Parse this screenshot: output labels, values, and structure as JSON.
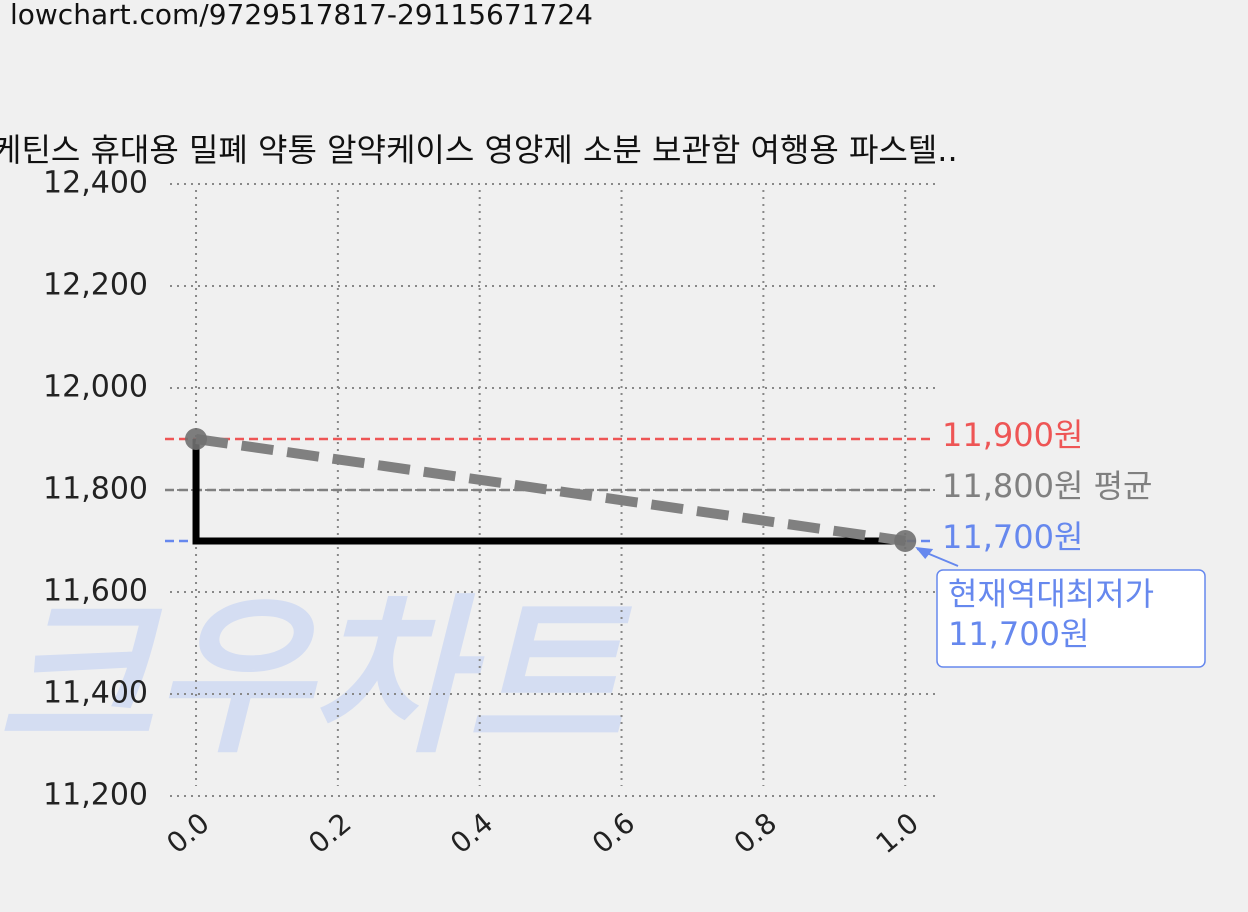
{
  "url": "lowchart.com/9729517817-29115671724",
  "chart_data": {
    "type": "line",
    "title": "케틴스 휴대용 밀폐 약통 알약케이스 영양제 소분 보관함 여행용 파스텔..",
    "watermark": "크우차트",
    "xlim": [
      -0.0367,
      1.042
    ],
    "ylim": [
      11200,
      12400
    ],
    "xticks": [
      {
        "value": 0,
        "label": "0.0"
      },
      0.2,
      0.4,
      0.6,
      0.8,
      {
        "value": 1,
        "label": "1.0"
      }
    ],
    "yticks": [
      {
        "value": 11200,
        "label": "11,200"
      },
      {
        "value": 11400,
        "label": "11,400"
      },
      {
        "value": 11600,
        "label": "11,600"
      },
      {
        "value": 11800,
        "label": "11,800"
      },
      {
        "value": 12000,
        "label": "12,000"
      },
      {
        "value": 12200,
        "label": "12,200"
      },
      {
        "value": 12400,
        "label": "12,400"
      }
    ],
    "grid": true,
    "series": [
      {
        "x": [
          0,
          0,
          1
        ],
        "values": [
          11900,
          11700,
          11700
        ],
        "color": "#000000",
        "style": "solid"
      },
      {
        "x": [
          0,
          1
        ],
        "values": [
          11900,
          11700
        ],
        "color": "#808080",
        "style": "dashed",
        "markers": true
      }
    ],
    "hlines": [
      {
        "value": 11900,
        "label": "11,900원",
        "color": "#ee5555"
      },
      {
        "value": 11800,
        "label": "11,800원 평균",
        "color": "#808080"
      },
      {
        "value": 11700,
        "label": "11,700원",
        "color": "#6688ee"
      }
    ],
    "annotation": {
      "x": 1,
      "y": 11700,
      "lines": [
        "현재역대최저가",
        "11,700원"
      ],
      "color": "#6688ee"
    }
  }
}
